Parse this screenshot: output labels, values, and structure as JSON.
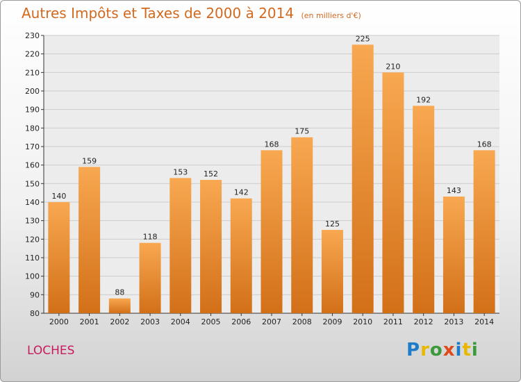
{
  "header": {
    "title": "Autres Impôts et Taxes de 2000 à 2014",
    "unit": "(en milliers d'€)"
  },
  "footer": {
    "town": "LOCHES",
    "logo_letters": [
      "P",
      "r",
      "o",
      "x",
      "i",
      "t",
      "i"
    ]
  },
  "colors": {
    "title": "#d2691e",
    "town": "#c8195e",
    "bar_light": "#f8a851",
    "bar_dark": "#d27018",
    "grid": "#cccccc"
  },
  "chart_data": {
    "type": "bar",
    "title": "Autres Impôts et Taxes de 2000 à 2014",
    "subtitle": "(en milliers d'€)",
    "xlabel": "",
    "ylabel": "",
    "categories": [
      "2000",
      "2001",
      "2002",
      "2003",
      "2004",
      "2005",
      "2006",
      "2007",
      "2008",
      "2009",
      "2010",
      "2011",
      "2012",
      "2013",
      "2014"
    ],
    "values": [
      140,
      159,
      88,
      118,
      153,
      152,
      142,
      168,
      175,
      125,
      225,
      210,
      192,
      143,
      168
    ],
    "ylim": [
      80,
      230
    ],
    "yticks": [
      80,
      90,
      100,
      110,
      120,
      130,
      140,
      150,
      160,
      170,
      180,
      190,
      200,
      210,
      220,
      230
    ],
    "grid": true,
    "legend": "none"
  }
}
